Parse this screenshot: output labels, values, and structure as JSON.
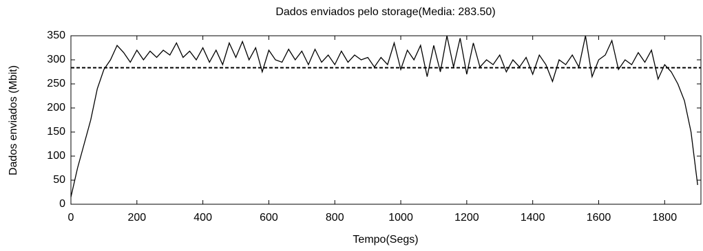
{
  "chart_data": {
    "type": "line",
    "title": "Dados enviados pelo storage(Media: 283.50)",
    "x_label": "Tempo(Segs)",
    "y_label": "Dados enviados (Mbit)",
    "x": [
      0,
      20,
      40,
      60,
      80,
      100,
      120,
      140,
      160,
      180,
      200,
      220,
      240,
      260,
      280,
      300,
      320,
      340,
      360,
      380,
      400,
      420,
      440,
      460,
      480,
      500,
      520,
      540,
      560,
      580,
      600,
      620,
      640,
      660,
      680,
      700,
      720,
      740,
      760,
      780,
      800,
      820,
      840,
      860,
      880,
      900,
      920,
      940,
      960,
      980,
      1000,
      1020,
      1040,
      1060,
      1080,
      1100,
      1120,
      1140,
      1160,
      1180,
      1200,
      1220,
      1240,
      1260,
      1280,
      1300,
      1320,
      1340,
      1360,
      1380,
      1400,
      1420,
      1440,
      1460,
      1480,
      1500,
      1520,
      1540,
      1560,
      1580,
      1600,
      1620,
      1640,
      1660,
      1680,
      1700,
      1720,
      1740,
      1760,
      1780,
      1800,
      1820,
      1840,
      1860,
      1880,
      1900
    ],
    "series": [
      {
        "color": "#000000",
        "values": [
          15,
          75,
          125,
          175,
          240,
          280,
          300,
          330,
          315,
          295,
          320,
          300,
          318,
          305,
          320,
          310,
          335,
          305,
          318,
          300,
          325,
          295,
          320,
          290,
          335,
          305,
          338,
          300,
          325,
          275,
          320,
          300,
          295,
          322,
          300,
          318,
          290,
          322,
          295,
          310,
          290,
          318,
          295,
          310,
          300,
          305,
          285,
          305,
          290,
          335,
          280,
          320,
          300,
          330,
          265,
          330,
          275,
          350,
          285,
          345,
          270,
          335,
          285,
          300,
          290,
          310,
          275,
          300,
          285,
          305,
          270,
          310,
          290,
          255,
          300,
          290,
          310,
          285,
          350,
          265,
          300,
          310,
          340,
          280,
          300,
          290,
          315,
          295,
          320,
          260,
          290,
          275,
          250,
          215,
          150,
          40
        ]
      }
    ],
    "reference_line": {
      "value": 283.5,
      "color": "#000000",
      "style": "dashed"
    },
    "xlim": [
      0,
      1910
    ],
    "xticks": [
      0,
      200,
      400,
      600,
      800,
      1000,
      1200,
      1400,
      1600,
      1800
    ],
    "ylim": [
      0,
      350
    ],
    "yticks": [
      0,
      50,
      100,
      150,
      200,
      250,
      300,
      350
    ]
  }
}
